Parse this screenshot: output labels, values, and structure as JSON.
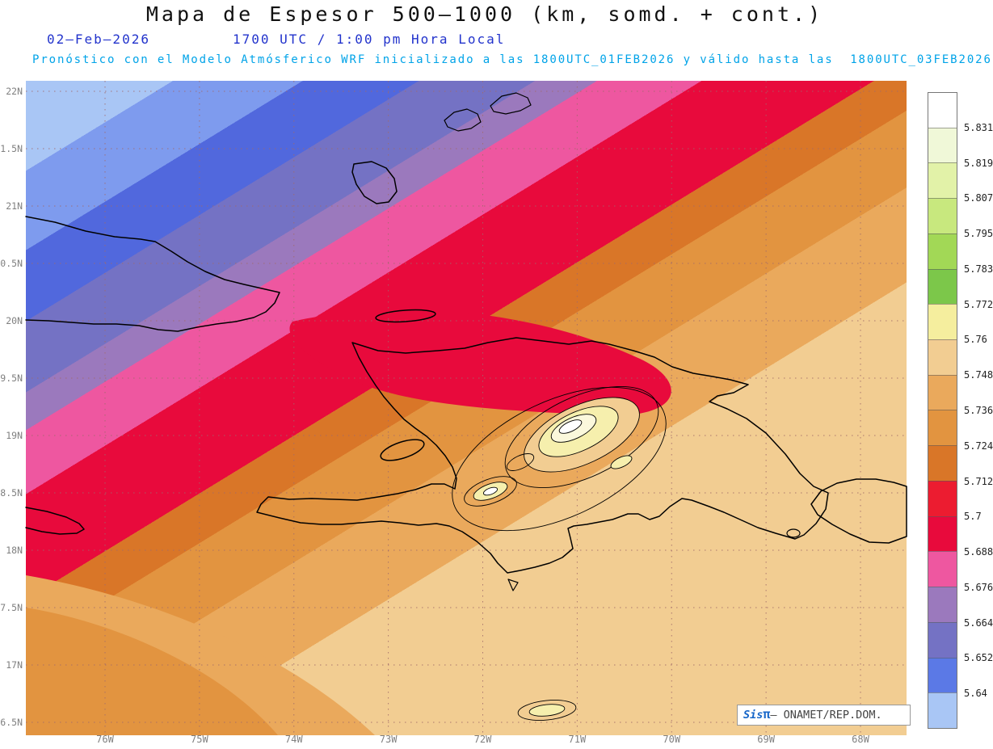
{
  "header": {
    "title": "Mapa de Espesor 500–1000 (km, somd. + cont.)",
    "date": "02–Feb–2026",
    "time": "1700 UTC / 1:00 pm Hora Local",
    "forecast": "Pronóstico con el Modelo Atmósferico WRF inicializado a las 1800UTC_01FEB2026 y válido hasta las  1800UTC_03FEB2026"
  },
  "axes": {
    "lat_labels": [
      "22N",
      "1.5N",
      "21N",
      "0.5N",
      "20N",
      "9.5N",
      "19N",
      "8.5N",
      "18N",
      "7.5N",
      "17N",
      "6.5N"
    ],
    "lon_labels": [
      "76W",
      "75W",
      "74W",
      "73W",
      "72W",
      "71W",
      "70W",
      "69W",
      "68W"
    ]
  },
  "colorbar": {
    "labels": [
      "5.831",
      "5.819",
      "5.807",
      "5.795",
      "5.783",
      "5.772",
      "5.76",
      "5.748",
      "5.736",
      "5.724",
      "5.712",
      "5.7",
      "5.688",
      "5.676",
      "5.664",
      "5.652",
      "5.64"
    ],
    "colors": [
      "#ffffff",
      "#f0f8d8",
      "#e2f2a8",
      "#c8e87e",
      "#a2d856",
      "#7cc74a",
      "#f5ee9e",
      "#f2cd92",
      "#eaa95c",
      "#e29440",
      "#d97628",
      "#ec1c30",
      "#e80a3c",
      "#ee57a0",
      "#9b79bd",
      "#7472c4",
      "#5b79e6",
      "#a9c6f5"
    ]
  },
  "attribution": {
    "brand": "Sis",
    "pi": "π",
    "text": "– ONAMET/REP.DOM."
  },
  "chart_data": {
    "type": "heatmap",
    "title": "Mapa de Espesor 500–1000 (km, somd. + cont.)",
    "field": "Espesor 500–1000 (km)",
    "colorbar_levels": [
      5.831,
      5.819,
      5.807,
      5.795,
      5.783,
      5.772,
      5.76,
      5.748,
      5.736,
      5.724,
      5.712,
      5.7,
      5.688,
      5.676,
      5.664,
      5.652,
      5.64
    ],
    "x_ticks": [
      "76W",
      "75W",
      "74W",
      "73W",
      "72W",
      "71W",
      "70W",
      "69W",
      "68W"
    ],
    "y_ticks": [
      "22N",
      "1.5N",
      "21N",
      "0.5N",
      "20N",
      "9.5N",
      "19N",
      "8.5N",
      "18N",
      "7.5N",
      "17N",
      "6.5N"
    ],
    "legend_position": "right",
    "pattern": "values increase diagonally from northwest (blue, below 5.64) to southeast (tan/yellow, near 5.77), with local maxima (pale yellow/white closed contours) over central Hispaniola"
  }
}
